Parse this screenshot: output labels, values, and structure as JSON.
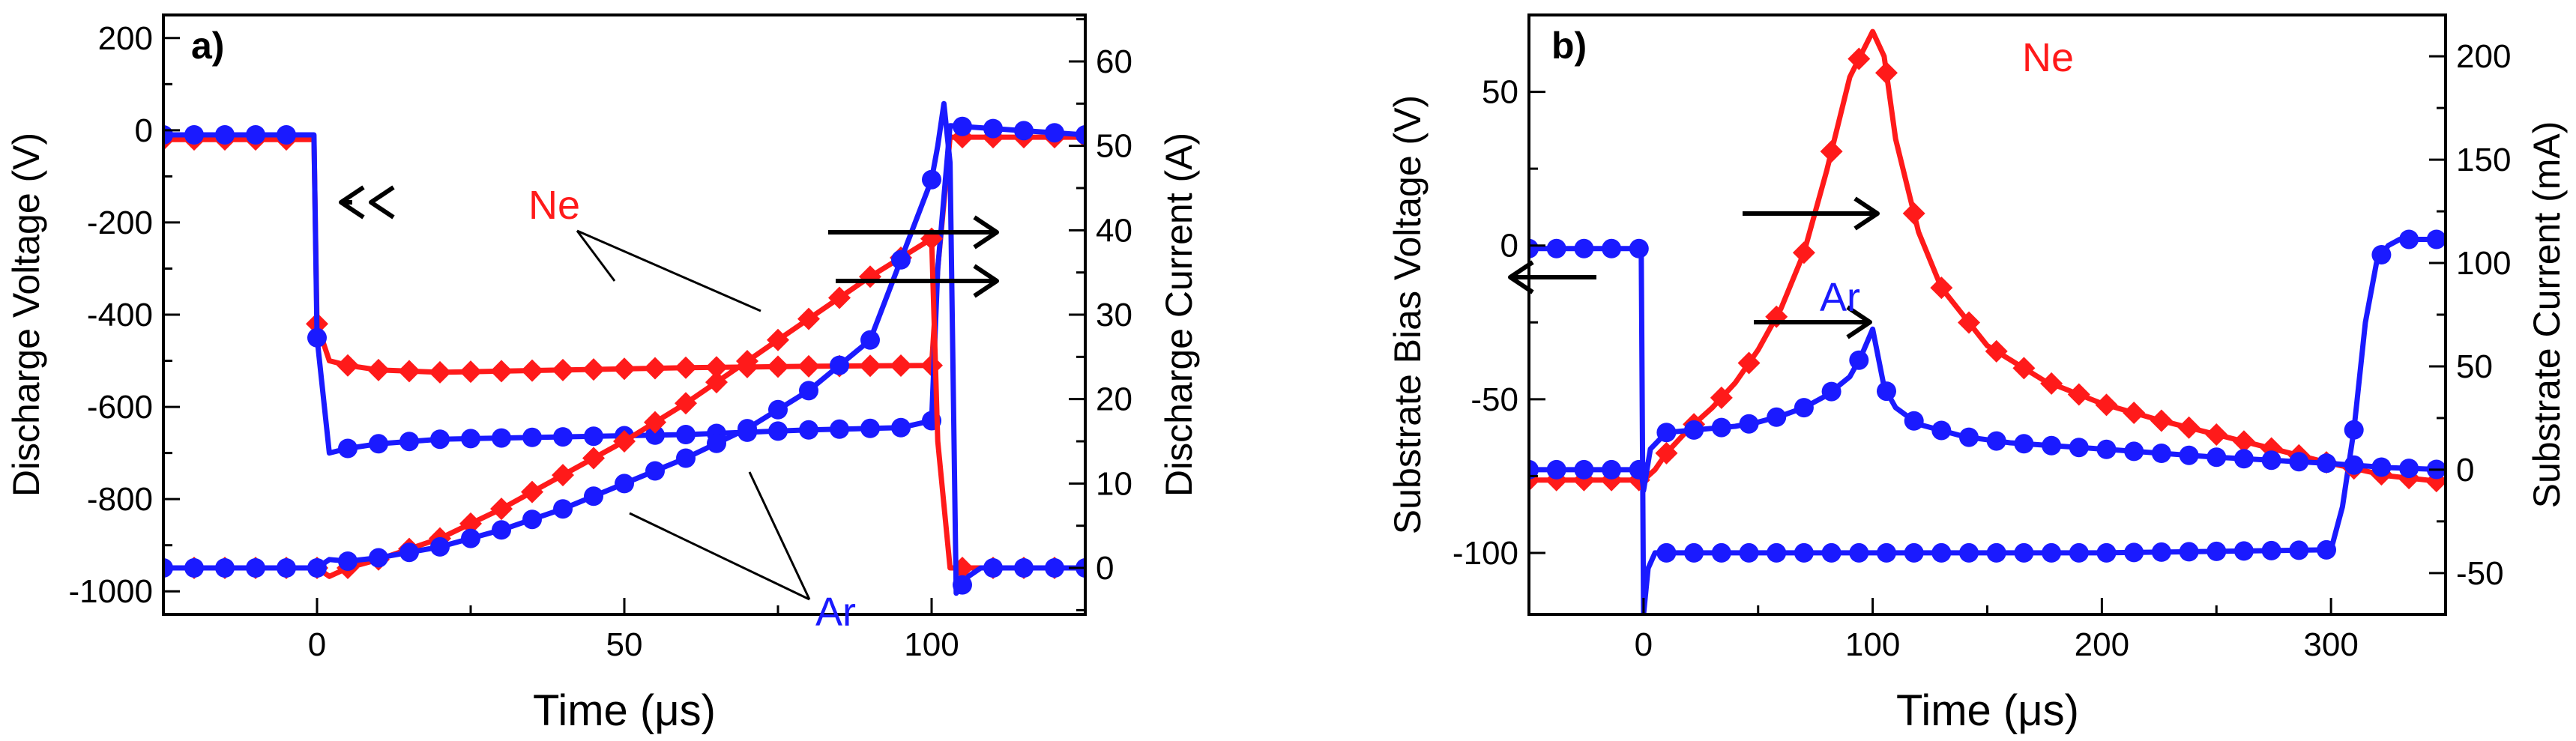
{
  "chart_data": [
    {
      "type": "line",
      "panel_label": "a)",
      "xlabel": "Time (μs)",
      "ylabel_left": "Discharge Voltage (V)",
      "ylabel_right": "Discharge Current (A)",
      "xlim": [
        -25,
        125
      ],
      "ylim_left": [
        -1050,
        250
      ],
      "ylim_right": [
        -5.5,
        65.5
      ],
      "xticks": [
        0,
        50,
        100
      ],
      "yticks_left": [
        -1000,
        -800,
        -600,
        -400,
        -200,
        0,
        200
      ],
      "yticks_right": [
        0,
        10,
        20,
        30,
        40,
        50,
        60
      ],
      "annotations": [
        "Ne",
        "Ar"
      ],
      "colors": {
        "Ne": "#ff1a1a",
        "Ar": "#1a1aff"
      },
      "series": [
        {
          "name": "Ne",
          "quantity": "voltage",
          "axis": "left",
          "marker": "diamond",
          "x": [
            -25,
            -0.5,
            0,
            2,
            5,
            10,
            20,
            40,
            60,
            80,
            100,
            101,
            103,
            125
          ],
          "y": [
            -20,
            -20,
            -420,
            -500,
            -510,
            -520,
            -525,
            -520,
            -515,
            -512,
            -510,
            -300,
            -15,
            -15
          ]
        },
        {
          "name": "Ar",
          "quantity": "voltage",
          "axis": "left",
          "marker": "circle",
          "x": [
            -25,
            -0.5,
            0,
            2,
            5,
            10,
            20,
            40,
            60,
            80,
            95,
            100,
            101,
            103,
            125
          ],
          "y": [
            -10,
            -10,
            -450,
            -700,
            -690,
            -680,
            -670,
            -665,
            -660,
            -650,
            -645,
            -630,
            -300,
            10,
            -10
          ]
        },
        {
          "name": "Ne",
          "quantity": "current",
          "axis": "right",
          "marker": "diamond",
          "x": [
            -25,
            0,
            2,
            5,
            10,
            20,
            30,
            40,
            50,
            60,
            70,
            80,
            90,
            100,
            101,
            103,
            125
          ],
          "y": [
            0,
            0,
            -1,
            0,
            1,
            3.5,
            7,
            11,
            15,
            19.5,
            24.5,
            29.5,
            34.5,
            39,
            15,
            0,
            0
          ]
        },
        {
          "name": "Ar",
          "quantity": "current",
          "axis": "right",
          "marker": "circle",
          "x": [
            -25,
            0,
            2,
            5,
            10,
            20,
            30,
            40,
            50,
            60,
            70,
            80,
            90,
            100,
            101,
            102,
            103,
            104,
            106,
            108,
            125
          ],
          "y": [
            0,
            0,
            1,
            0.8,
            1.2,
            2.5,
            4.5,
            7,
            10,
            13,
            16.5,
            21,
            27,
            46,
            50,
            55,
            48,
            -3,
            -1,
            0,
            0
          ]
        }
      ]
    },
    {
      "type": "line",
      "panel_label": "b)",
      "xlabel": "Time (μs)",
      "ylabel_left": "Substrate Bias Voltage (V)",
      "ylabel_right": "Substrate Current (mA)",
      "xlim": [
        -50,
        350
      ],
      "ylim_left": [
        -120,
        75
      ],
      "ylim_right": [
        -70,
        220
      ],
      "xticks": [
        0,
        100,
        200,
        300
      ],
      "yticks_left": [
        -100,
        -50,
        0,
        50
      ],
      "yticks_right": [
        -50,
        0,
        50,
        100,
        150,
        200
      ],
      "annotations": [
        "Ne",
        "Ar"
      ],
      "colors": {
        "Ne": "#ff1a1a",
        "Ar": "#1a1aff"
      },
      "series": [
        {
          "name": "Ar",
          "quantity": "voltage",
          "axis": "left",
          "marker": "circle",
          "x": [
            -50,
            -1,
            0,
            2,
            5,
            100,
            200,
            300,
            305,
            310,
            315,
            320,
            325,
            330,
            340,
            350
          ],
          "y": [
            -1,
            -1,
            -120,
            -105,
            -100,
            -100,
            -100,
            -99,
            -85,
            -60,
            -25,
            -5,
            0,
            2,
            2,
            2
          ]
        },
        {
          "name": "Ne",
          "quantity": "current",
          "axis": "right",
          "marker": "diamond",
          "x": [
            -50,
            0,
            5,
            10,
            20,
            30,
            40,
            50,
            60,
            70,
            80,
            90,
            100,
            105,
            110,
            120,
            130,
            150,
            175,
            200,
            225,
            250,
            275,
            300,
            325,
            350
          ],
          "y": [
            -5,
            -5,
            0,
            8,
            20,
            30,
            42,
            58,
            78,
            105,
            145,
            190,
            212,
            200,
            160,
            115,
            88,
            60,
            43,
            32,
            24,
            17,
            10,
            3,
            -3,
            -6
          ]
        },
        {
          "name": "Ar",
          "quantity": "current",
          "axis": "right",
          "marker": "circle",
          "x": [
            -50,
            -1,
            0,
            3,
            10,
            20,
            30,
            40,
            50,
            60,
            70,
            80,
            90,
            95,
            100,
            105,
            110,
            120,
            140,
            160,
            200,
            250,
            300,
            325,
            350
          ],
          "y": [
            0,
            0,
            -10,
            10,
            18,
            19,
            20,
            21,
            23,
            26,
            30,
            36,
            45,
            55,
            68,
            40,
            30,
            22,
            16,
            13,
            10,
            6,
            3,
            1,
            0
          ]
        }
      ]
    }
  ]
}
